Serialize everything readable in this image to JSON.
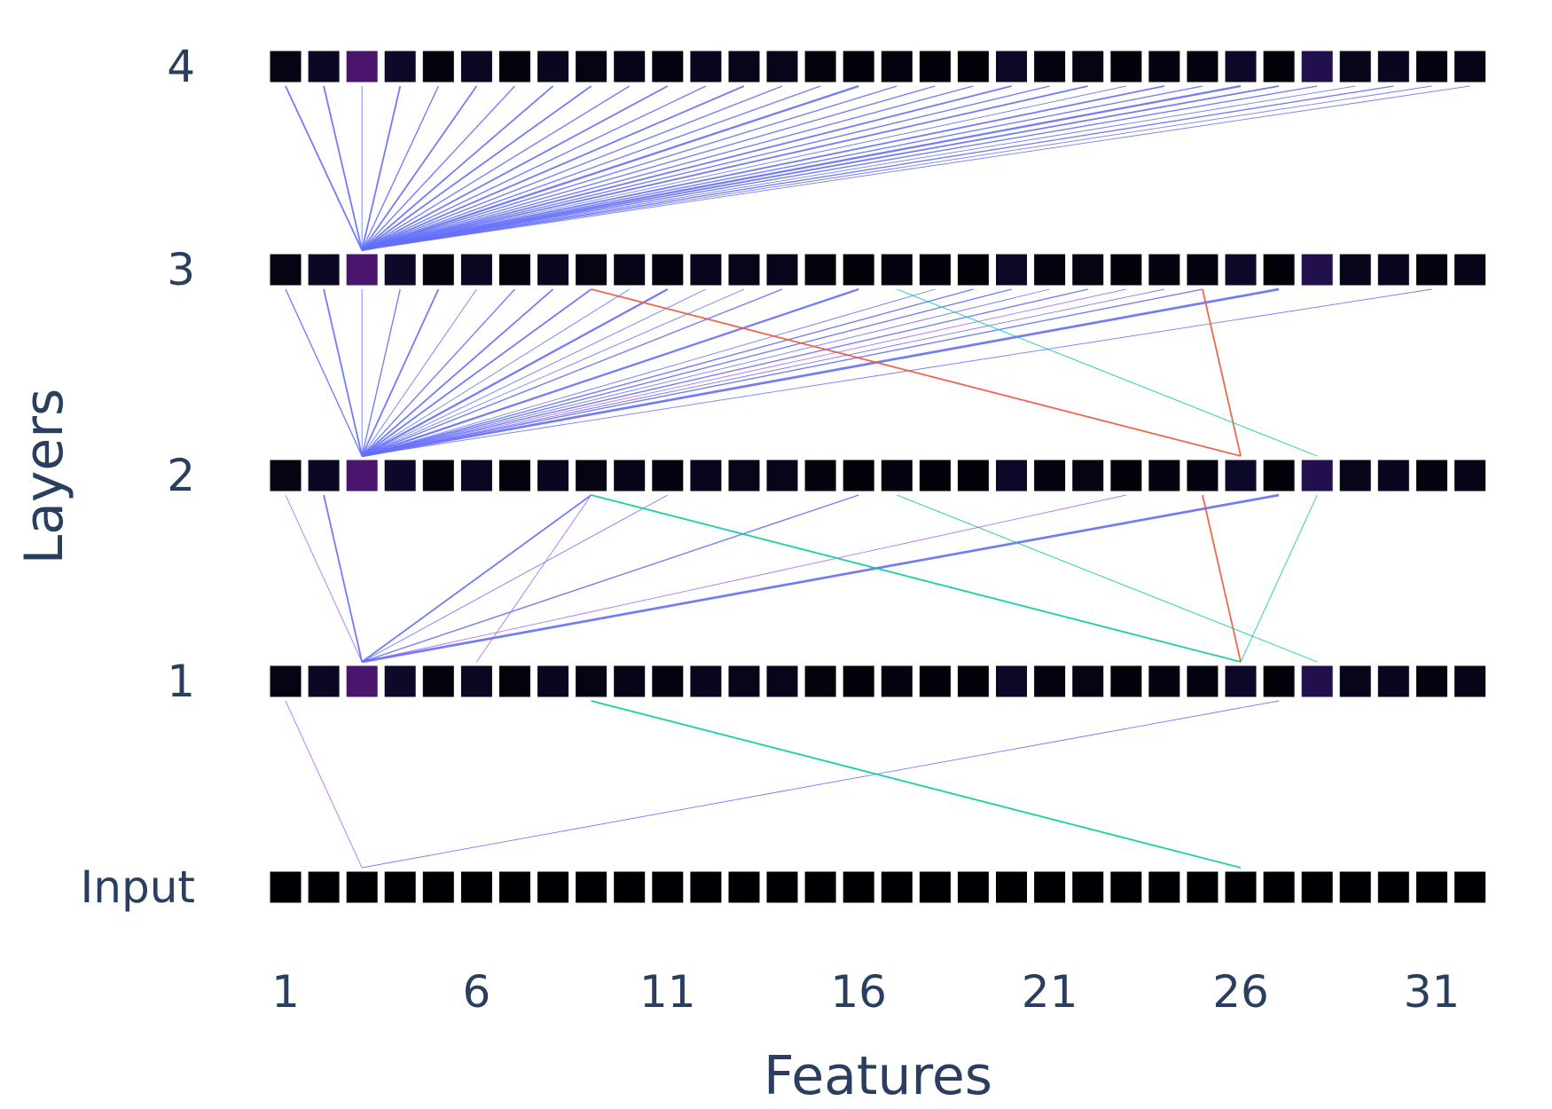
{
  "chart_data": {
    "type": "heatmap",
    "title": "",
    "xlabel": "Features",
    "ylabel": "Layers",
    "x": [
      1,
      2,
      3,
      4,
      5,
      6,
      7,
      8,
      9,
      10,
      11,
      12,
      13,
      14,
      15,
      16,
      17,
      18,
      19,
      20,
      21,
      22,
      23,
      24,
      25,
      26,
      27,
      28,
      29,
      30,
      31,
      32
    ],
    "x_tick_labels": [
      "1",
      "6",
      "11",
      "16",
      "21",
      "26",
      "31"
    ],
    "x_tick_values": [
      1,
      6,
      11,
      16,
      21,
      26,
      31
    ],
    "layers": [
      "Input",
      "1",
      "2",
      "3",
      "4"
    ],
    "colorscale": [
      "#000004",
      "#0d0929",
      "#1c1044",
      "#35106a",
      "#6b1a72"
    ],
    "rows": [
      [
        0,
        0,
        0,
        0,
        0,
        0,
        0,
        0,
        0,
        0,
        0,
        0,
        0,
        0,
        0,
        0,
        0,
        0,
        0,
        0,
        0,
        0,
        0,
        0,
        0,
        0,
        0,
        0,
        0,
        0,
        0,
        0
      ],
      [
        0.1,
        0.2,
        0.85,
        0.25,
        0.06,
        0.2,
        0.06,
        0.18,
        0.1,
        0.12,
        0.08,
        0.16,
        0.14,
        0.14,
        0.07,
        0.04,
        0.08,
        0.05,
        0.05,
        0.24,
        0.08,
        0.1,
        0.05,
        0.08,
        0.08,
        0.24,
        0.05,
        0.55,
        0.14,
        0.18,
        0.08,
        0.12
      ],
      [
        0.1,
        0.2,
        0.85,
        0.25,
        0.06,
        0.2,
        0.06,
        0.18,
        0.1,
        0.12,
        0.08,
        0.16,
        0.14,
        0.14,
        0.07,
        0.04,
        0.08,
        0.05,
        0.05,
        0.24,
        0.08,
        0.1,
        0.05,
        0.08,
        0.08,
        0.24,
        0.05,
        0.55,
        0.14,
        0.18,
        0.08,
        0.12
      ],
      [
        0.1,
        0.2,
        0.85,
        0.25,
        0.06,
        0.2,
        0.06,
        0.18,
        0.1,
        0.12,
        0.08,
        0.16,
        0.14,
        0.14,
        0.07,
        0.04,
        0.08,
        0.05,
        0.05,
        0.24,
        0.08,
        0.1,
        0.05,
        0.08,
        0.08,
        0.24,
        0.05,
        0.55,
        0.14,
        0.18,
        0.08,
        0.12
      ],
      [
        0.1,
        0.2,
        0.85,
        0.25,
        0.06,
        0.2,
        0.06,
        0.18,
        0.1,
        0.12,
        0.08,
        0.16,
        0.14,
        0.14,
        0.07,
        0.04,
        0.08,
        0.05,
        0.05,
        0.24,
        0.08,
        0.1,
        0.05,
        0.08,
        0.08,
        0.24,
        0.05,
        0.55,
        0.14,
        0.18,
        0.08,
        0.12
      ]
    ],
    "connections": [
      {
        "from_layer": 0,
        "from_feature": 3,
        "to_layer": 1,
        "to_feature": 1,
        "color": "#ab63fa",
        "weight": 1
      },
      {
        "from_layer": 0,
        "from_feature": 3,
        "to_layer": 1,
        "to_feature": 27,
        "color": "#636efa",
        "weight": 1
      },
      {
        "from_layer": 0,
        "from_feature": 26,
        "to_layer": 1,
        "to_feature": 9,
        "color": "#00cc96",
        "weight": 2
      },
      {
        "from_layer": 1,
        "from_feature": 3,
        "to_layer": 2,
        "to_feature": 1,
        "color": "#ab63fa",
        "weight": 1
      },
      {
        "from_layer": 1,
        "from_feature": 3,
        "to_layer": 2,
        "to_feature": 2,
        "color": "#636efa",
        "weight": 2
      },
      {
        "from_layer": 1,
        "from_feature": 3,
        "to_layer": 2,
        "to_feature": 9,
        "color": "#636efa",
        "weight": 2
      },
      {
        "from_layer": 1,
        "from_feature": 3,
        "to_layer": 2,
        "to_feature": 11,
        "color": "#636efa",
        "weight": 1
      },
      {
        "from_layer": 1,
        "from_feature": 3,
        "to_layer": 2,
        "to_feature": 16,
        "color": "#636efa",
        "weight": 1.5
      },
      {
        "from_layer": 1,
        "from_feature": 3,
        "to_layer": 2,
        "to_feature": 23,
        "color": "#ab63fa",
        "weight": 1
      },
      {
        "from_layer": 1,
        "from_feature": 3,
        "to_layer": 2,
        "to_feature": 27,
        "color": "#636efa",
        "weight": 3
      },
      {
        "from_layer": 1,
        "from_feature": 6,
        "to_layer": 2,
        "to_feature": 9,
        "color": "#ab63fa",
        "weight": 1
      },
      {
        "from_layer": 1,
        "from_feature": 26,
        "to_layer": 2,
        "to_feature": 9,
        "color": "#00cc96",
        "weight": 2
      },
      {
        "from_layer": 1,
        "from_feature": 26,
        "to_layer": 2,
        "to_feature": 25,
        "color": "#ef553b",
        "weight": 2
      },
      {
        "from_layer": 1,
        "from_feature": 26,
        "to_layer": 2,
        "to_feature": 28,
        "color": "#00cc96",
        "weight": 1
      },
      {
        "from_layer": 1,
        "from_feature": 28,
        "to_layer": 2,
        "to_feature": 17,
        "color": "#00cc96",
        "weight": 1
      },
      {
        "from_layer": 2,
        "from_feature": 3,
        "to_layer": 3,
        "to_feature": 1,
        "color": "#636efa",
        "weight": 1.5
      },
      {
        "from_layer": 2,
        "from_feature": 3,
        "to_layer": 3,
        "to_feature": 2,
        "color": "#636efa",
        "weight": 2
      },
      {
        "from_layer": 2,
        "from_feature": 3,
        "to_layer": 3,
        "to_feature": 3,
        "color": "#636efa",
        "weight": 1
      },
      {
        "from_layer": 2,
        "from_feature": 3,
        "to_layer": 3,
        "to_feature": 4,
        "color": "#636efa",
        "weight": 1.5
      },
      {
        "from_layer": 2,
        "from_feature": 3,
        "to_layer": 3,
        "to_feature": 5,
        "color": "#636efa",
        "weight": 2
      },
      {
        "from_layer": 2,
        "from_feature": 3,
        "to_layer": 3,
        "to_feature": 6,
        "color": "#636efa",
        "weight": 1
      },
      {
        "from_layer": 2,
        "from_feature": 3,
        "to_layer": 3,
        "to_feature": 7,
        "color": "#636efa",
        "weight": 1.5
      },
      {
        "from_layer": 2,
        "from_feature": 3,
        "to_layer": 3,
        "to_feature": 8,
        "color": "#636efa",
        "weight": 2
      },
      {
        "from_layer": 2,
        "from_feature": 3,
        "to_layer": 3,
        "to_feature": 9,
        "color": "#636efa",
        "weight": 2
      },
      {
        "from_layer": 2,
        "from_feature": 3,
        "to_layer": 3,
        "to_feature": 10,
        "color": "#636efa",
        "weight": 1
      },
      {
        "from_layer": 2,
        "from_feature": 3,
        "to_layer": 3,
        "to_feature": 11,
        "color": "#636efa",
        "weight": 2.5
      },
      {
        "from_layer": 2,
        "from_feature": 3,
        "to_layer": 3,
        "to_feature": 12,
        "color": "#636efa",
        "weight": 1
      },
      {
        "from_layer": 2,
        "from_feature": 3,
        "to_layer": 3,
        "to_feature": 13,
        "color": "#636efa",
        "weight": 1
      },
      {
        "from_layer": 2,
        "from_feature": 3,
        "to_layer": 3,
        "to_feature": 14,
        "color": "#636efa",
        "weight": 1.5
      },
      {
        "from_layer": 2,
        "from_feature": 3,
        "to_layer": 3,
        "to_feature": 16,
        "color": "#636efa",
        "weight": 2.5
      },
      {
        "from_layer": 2,
        "from_feature": 3,
        "to_layer": 3,
        "to_feature": 18,
        "color": "#636efa",
        "weight": 1
      },
      {
        "from_layer": 2,
        "from_feature": 3,
        "to_layer": 3,
        "to_feature": 19,
        "color": "#636efa",
        "weight": 1.5
      },
      {
        "from_layer": 2,
        "from_feature": 3,
        "to_layer": 3,
        "to_feature": 20,
        "color": "#636efa",
        "weight": 1.5
      },
      {
        "from_layer": 2,
        "from_feature": 3,
        "to_layer": 3,
        "to_feature": 21,
        "color": "#636efa",
        "weight": 1
      },
      {
        "from_layer": 2,
        "from_feature": 3,
        "to_layer": 3,
        "to_feature": 22,
        "color": "#636efa",
        "weight": 1.5
      },
      {
        "from_layer": 2,
        "from_feature": 3,
        "to_layer": 3,
        "to_feature": 23,
        "color": "#ab63fa",
        "weight": 1
      },
      {
        "from_layer": 2,
        "from_feature": 3,
        "to_layer": 3,
        "to_feature": 24,
        "color": "#636efa",
        "weight": 1
      },
      {
        "from_layer": 2,
        "from_feature": 3,
        "to_layer": 3,
        "to_feature": 25,
        "color": "#636efa",
        "weight": 1.5
      },
      {
        "from_layer": 2,
        "from_feature": 3,
        "to_layer": 3,
        "to_feature": 27,
        "color": "#636efa",
        "weight": 3
      },
      {
        "from_layer": 2,
        "from_feature": 3,
        "to_layer": 3,
        "to_feature": 31,
        "color": "#636efa",
        "weight": 1
      },
      {
        "from_layer": 2,
        "from_feature": 26,
        "to_layer": 3,
        "to_feature": 9,
        "color": "#ef553b",
        "weight": 2
      },
      {
        "from_layer": 2,
        "from_feature": 26,
        "to_layer": 3,
        "to_feature": 25,
        "color": "#ef553b",
        "weight": 2
      },
      {
        "from_layer": 2,
        "from_feature": 28,
        "to_layer": 3,
        "to_feature": 17,
        "color": "#00cc96",
        "weight": 1
      },
      {
        "from_layer": 3,
        "from_feature": 3,
        "to_layer": 4,
        "to_feature": 1,
        "color": "#636efa",
        "weight": 2
      },
      {
        "from_layer": 3,
        "from_feature": 3,
        "to_layer": 4,
        "to_feature": 2,
        "color": "#636efa",
        "weight": 2
      },
      {
        "from_layer": 3,
        "from_feature": 3,
        "to_layer": 4,
        "to_feature": 3,
        "color": "#636efa",
        "weight": 1
      },
      {
        "from_layer": 3,
        "from_feature": 3,
        "to_layer": 4,
        "to_feature": 4,
        "color": "#636efa",
        "weight": 2
      },
      {
        "from_layer": 3,
        "from_feature": 3,
        "to_layer": 4,
        "to_feature": 5,
        "color": "#636efa",
        "weight": 1.5
      },
      {
        "from_layer": 3,
        "from_feature": 3,
        "to_layer": 4,
        "to_feature": 6,
        "color": "#636efa",
        "weight": 2
      },
      {
        "from_layer": 3,
        "from_feature": 3,
        "to_layer": 4,
        "to_feature": 7,
        "color": "#636efa",
        "weight": 1.5
      },
      {
        "from_layer": 3,
        "from_feature": 3,
        "to_layer": 4,
        "to_feature": 8,
        "color": "#636efa",
        "weight": 2
      },
      {
        "from_layer": 3,
        "from_feature": 3,
        "to_layer": 4,
        "to_feature": 9,
        "color": "#636efa",
        "weight": 2
      },
      {
        "from_layer": 3,
        "from_feature": 3,
        "to_layer": 4,
        "to_feature": 10,
        "color": "#636efa",
        "weight": 1.5
      },
      {
        "from_layer": 3,
        "from_feature": 3,
        "to_layer": 4,
        "to_feature": 11,
        "color": "#636efa",
        "weight": 2
      },
      {
        "from_layer": 3,
        "from_feature": 3,
        "to_layer": 4,
        "to_feature": 12,
        "color": "#636efa",
        "weight": 1.5
      },
      {
        "from_layer": 3,
        "from_feature": 3,
        "to_layer": 4,
        "to_feature": 13,
        "color": "#636efa",
        "weight": 2
      },
      {
        "from_layer": 3,
        "from_feature": 3,
        "to_layer": 4,
        "to_feature": 14,
        "color": "#636efa",
        "weight": 1.5
      },
      {
        "from_layer": 3,
        "from_feature": 3,
        "to_layer": 4,
        "to_feature": 15,
        "color": "#636efa",
        "weight": 1.5
      },
      {
        "from_layer": 3,
        "from_feature": 3,
        "to_layer": 4,
        "to_feature": 16,
        "color": "#636efa",
        "weight": 2.5
      },
      {
        "from_layer": 3,
        "from_feature": 3,
        "to_layer": 4,
        "to_feature": 17,
        "color": "#636efa",
        "weight": 1.5
      },
      {
        "from_layer": 3,
        "from_feature": 3,
        "to_layer": 4,
        "to_feature": 18,
        "color": "#636efa",
        "weight": 1.5
      },
      {
        "from_layer": 3,
        "from_feature": 3,
        "to_layer": 4,
        "to_feature": 19,
        "color": "#636efa",
        "weight": 1.5
      },
      {
        "from_layer": 3,
        "from_feature": 3,
        "to_layer": 4,
        "to_feature": 20,
        "color": "#636efa",
        "weight": 2
      },
      {
        "from_layer": 3,
        "from_feature": 3,
        "to_layer": 4,
        "to_feature": 21,
        "color": "#636efa",
        "weight": 1.5
      },
      {
        "from_layer": 3,
        "from_feature": 3,
        "to_layer": 4,
        "to_feature": 22,
        "color": "#636efa",
        "weight": 2
      },
      {
        "from_layer": 3,
        "from_feature": 3,
        "to_layer": 4,
        "to_feature": 23,
        "color": "#636efa",
        "weight": 1
      },
      {
        "from_layer": 3,
        "from_feature": 3,
        "to_layer": 4,
        "to_feature": 24,
        "color": "#636efa",
        "weight": 2
      },
      {
        "from_layer": 3,
        "from_feature": 3,
        "to_layer": 4,
        "to_feature": 25,
        "color": "#636efa",
        "weight": 1.5
      },
      {
        "from_layer": 3,
        "from_feature": 3,
        "to_layer": 4,
        "to_feature": 26,
        "color": "#636efa",
        "weight": 2.5
      },
      {
        "from_layer": 3,
        "from_feature": 3,
        "to_layer": 4,
        "to_feature": 27,
        "color": "#636efa",
        "weight": 2
      },
      {
        "from_layer": 3,
        "from_feature": 3,
        "to_layer": 4,
        "to_feature": 28,
        "color": "#636efa",
        "weight": 1.5
      },
      {
        "from_layer": 3,
        "from_feature": 3,
        "to_layer": 4,
        "to_feature": 29,
        "color": "#636efa",
        "weight": 1
      },
      {
        "from_layer": 3,
        "from_feature": 3,
        "to_layer": 4,
        "to_feature": 30,
        "color": "#636efa",
        "weight": 1.5
      },
      {
        "from_layer": 3,
        "from_feature": 3,
        "to_layer": 4,
        "to_feature": 31,
        "color": "#636efa",
        "weight": 1
      },
      {
        "from_layer": 3,
        "from_feature": 3,
        "to_layer": 4,
        "to_feature": 32,
        "color": "#636efa",
        "weight": 1
      }
    ]
  }
}
